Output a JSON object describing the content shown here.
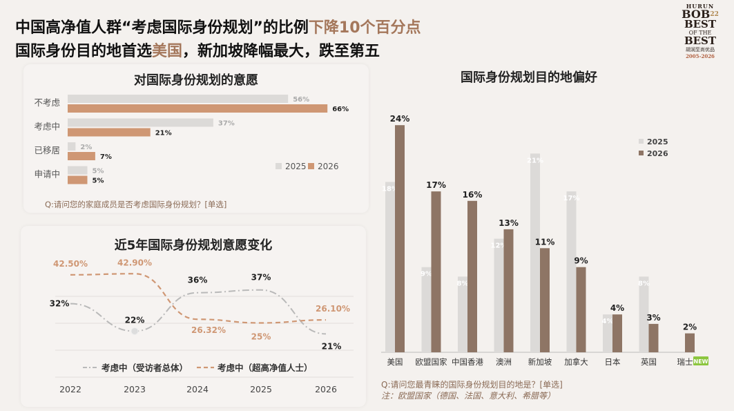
{
  "headline": {
    "line1_a": "中国高净值人群“考虑国际身份规划”的比例",
    "line1_b": "下降10个百分点",
    "line2_a": "国际身份目的地首选",
    "line2_b": "美国",
    "line2_c": "，新加坡降幅最大，跌至第五"
  },
  "logo": {
    "top": "HURUN",
    "mid": "BOB",
    "sup": "22",
    "line1": "BEST",
    "line2": "OF THE",
    "line3": "BEST",
    "cn": "胡润至尚优品",
    "years": "2005-2026"
  },
  "colors": {
    "y2025": "#dcdad8",
    "y2026_bar": "#cf9774",
    "y2026_col": "#8e7565",
    "line_general": "#b9b9b9",
    "line_hnw": "#cf9774"
  },
  "panels": {
    "intent": {
      "title": "对国际身份规划的意愿",
      "question": "Q:请问您的家庭成员是否考虑国际身份规划？[单选]"
    },
    "trend": {
      "title": "近5年国际身份规划意愿变化"
    },
    "destination": {
      "title": "国际身份规划目的地偏好",
      "question": "Q:请问您最青睐的国际身份规划目的地是？[单选]",
      "note": "注：欧盟国家（德国、法国、意大利、希腊等）",
      "new_badge": "NEW"
    }
  },
  "chart_data": [
    {
      "type": "bar",
      "orientation": "horizontal",
      "title": "对国际身份规划的意愿",
      "categories": [
        "不考虑",
        "考虑中",
        "已移居",
        "申请中"
      ],
      "series": [
        {
          "name": "2025",
          "values": [
            56,
            37,
            2,
            5
          ]
        },
        {
          "name": "2026",
          "values": [
            66,
            21,
            7,
            5
          ]
        }
      ],
      "unit": "%",
      "legend": "bottom-right"
    },
    {
      "type": "line",
      "title": "近5年国际身份规划意愿变化",
      "x": [
        "2022",
        "2023",
        "2024",
        "2025",
        "2026"
      ],
      "series": [
        {
          "name": "考虑中（受访者总体）",
          "values": [
            32,
            22,
            36,
            37,
            21
          ],
          "labels": [
            "32%",
            "22%",
            "36%",
            "37%",
            "21%"
          ]
        },
        {
          "name": "考虑中（超高净值人士）",
          "values": [
            42.5,
            42.9,
            26.32,
            25,
            26.1
          ],
          "labels": [
            "42.50%",
            "42.90%",
            "26.32%",
            "25%",
            "26.10%"
          ]
        }
      ],
      "legend": "bottom"
    },
    {
      "type": "bar",
      "orientation": "vertical",
      "title": "国际身份规划目的地偏好",
      "categories": [
        "美国",
        "欧盟国家",
        "中国香港",
        "澳洲",
        "新加坡",
        "加拿大",
        "日本",
        "英国",
        "瑞士"
      ],
      "series": [
        {
          "name": "2025",
          "values": [
            18,
            9,
            8,
            12,
            21,
            17,
            4,
            8,
            null
          ]
        },
        {
          "name": "2026",
          "values": [
            24,
            17,
            16,
            13,
            11,
            9,
            4,
            3,
            2
          ]
        }
      ],
      "unit": "%",
      "legend": "right"
    }
  ]
}
